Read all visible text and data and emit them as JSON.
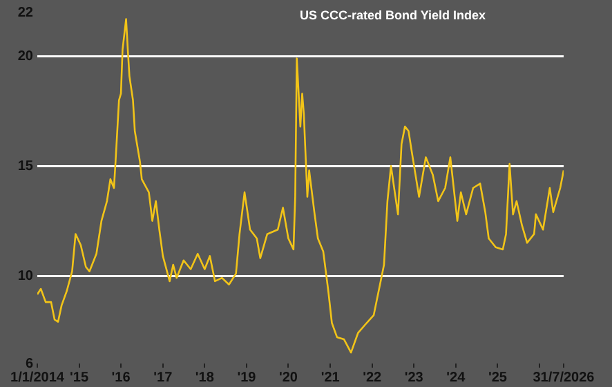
{
  "chart_data": {
    "type": "line",
    "title": "US CCC-rated Bond Yield Index",
    "x": [
      "2014-01-01",
      "2014-02-01",
      "2014-03-15",
      "2014-05-01",
      "2014-06-01",
      "2014-07-01",
      "2014-08-01",
      "2014-09-15",
      "2014-11-01",
      "2014-12-01",
      "2015-01-15",
      "2015-03-01",
      "2015-04-01",
      "2015-06-01",
      "2015-07-15",
      "2015-09-01",
      "2015-10-01",
      "2015-11-01",
      "2015-11-15",
      "2015-12-15",
      "2016-01-01",
      "2016-01-15",
      "2016-02-15",
      "2016-03-01",
      "2016-03-15",
      "2016-04-15",
      "2016-05-01",
      "2016-06-15",
      "2016-07-01",
      "2016-09-01",
      "2016-10-01",
      "2016-11-01",
      "2016-12-01",
      "2017-01-01",
      "2017-03-01",
      "2017-04-01",
      "2017-05-01",
      "2017-07-01",
      "2017-09-01",
      "2017-11-01",
      "2018-01-01",
      "2018-02-15",
      "2018-04-01",
      "2018-06-01",
      "2018-08-01",
      "2018-10-01",
      "2018-11-01",
      "2018-12-15",
      "2019-02-01",
      "2019-04-01",
      "2019-05-01",
      "2019-07-01",
      "2019-10-01",
      "2019-11-15",
      "2020-01-01",
      "2020-02-15",
      "2020-03-01",
      "2020-03-15",
      "2020-04-15",
      "2020-05-01",
      "2020-05-15",
      "2020-06-15",
      "2020-07-01",
      "2020-08-15",
      "2020-09-15",
      "2020-11-01",
      "2020-12-15",
      "2021-01-15",
      "2021-03-01",
      "2021-05-01",
      "2021-07-01",
      "2021-09-01",
      "2021-11-15",
      "2022-01-15",
      "2022-03-15",
      "2022-04-15",
      "2022-05-15",
      "2022-06-15",
      "2022-08-15",
      "2022-09-15",
      "2022-10-15",
      "2022-11-15",
      "2022-12-15",
      "2023-02-15",
      "2023-04-15",
      "2023-06-15",
      "2023-08-01",
      "2023-10-01",
      "2023-11-15",
      "2024-01-15",
      "2024-02-15",
      "2024-04-01",
      "2024-06-01",
      "2024-08-01",
      "2024-09-15",
      "2024-10-15",
      "2024-12-15",
      "2025-02-15",
      "2025-03-15",
      "2025-04-15",
      "2025-05-15",
      "2025-06-15",
      "2025-08-01",
      "2025-09-15",
      "2025-11-15",
      "2025-12-01",
      "2026-02-01",
      "2026-04-01",
      "2026-05-01",
      "2026-07-01",
      "2026-07-31"
    ],
    "series": [
      {
        "color": "#f2c418",
        "values": [
          9.15,
          9.4,
          8.8,
          8.8,
          8.0,
          7.9,
          8.65,
          9.3,
          10.2,
          11.9,
          11.4,
          10.4,
          10.2,
          11.0,
          12.5,
          13.4,
          14.4,
          14.0,
          15.2,
          18.0,
          18.3,
          20.3,
          21.7,
          20.3,
          19.1,
          18.0,
          16.6,
          15.2,
          14.4,
          13.8,
          12.5,
          13.4,
          12.1,
          10.9,
          9.75,
          10.5,
          9.9,
          10.7,
          10.3,
          11.0,
          10.3,
          10.9,
          9.75,
          9.9,
          9.6,
          10.1,
          11.9,
          13.8,
          12.1,
          11.7,
          10.8,
          11.9,
          12.1,
          13.1,
          11.7,
          11.2,
          13.6,
          19.9,
          16.8,
          18.3,
          17.4,
          13.6,
          14.8,
          12.9,
          11.7,
          11.1,
          9.3,
          7.85,
          7.2,
          7.1,
          6.5,
          7.4,
          7.85,
          8.2,
          9.7,
          10.5,
          13.4,
          15.0,
          12.8,
          16.0,
          16.8,
          16.6,
          15.6,
          13.6,
          15.4,
          14.6,
          13.4,
          14.0,
          15.4,
          12.5,
          13.8,
          12.8,
          14.0,
          14.2,
          12.9,
          11.7,
          11.3,
          11.2,
          11.9,
          15.1,
          12.8,
          13.4,
          12.3,
          11.5,
          11.9,
          12.8,
          12.1,
          14.0,
          12.9,
          14.0,
          14.8
        ]
      }
    ],
    "xlim": [
      "2014-01-01",
      "2026-07-31"
    ],
    "xticks": [
      {
        "value": "2014-01-01",
        "label": "1/1/2014"
      },
      {
        "value": "2015-01-01",
        "label": "'15"
      },
      {
        "value": "2016-01-01",
        "label": "'16"
      },
      {
        "value": "2017-01-01",
        "label": "'17"
      },
      {
        "value": "2018-01-01",
        "label": "'18"
      },
      {
        "value": "2019-01-01",
        "label": "'19"
      },
      {
        "value": "2020-01-01",
        "label": "'20"
      },
      {
        "value": "2021-01-01",
        "label": "'21"
      },
      {
        "value": "2022-01-01",
        "label": "'22"
      },
      {
        "value": "2023-01-01",
        "label": "'23"
      },
      {
        "value": "2024-01-01",
        "label": "'24"
      },
      {
        "value": "2025-01-01",
        "label": "'25"
      },
      {
        "value": "2026-01-01",
        "label": null
      },
      {
        "value": "2026-07-31",
        "label": "31/7/2026"
      }
    ],
    "ylim": [
      6,
      22
    ],
    "yticks": [
      6,
      10,
      15,
      20,
      22
    ],
    "grid": "y",
    "legend": false,
    "marker": "none",
    "line_style": "solid"
  }
}
